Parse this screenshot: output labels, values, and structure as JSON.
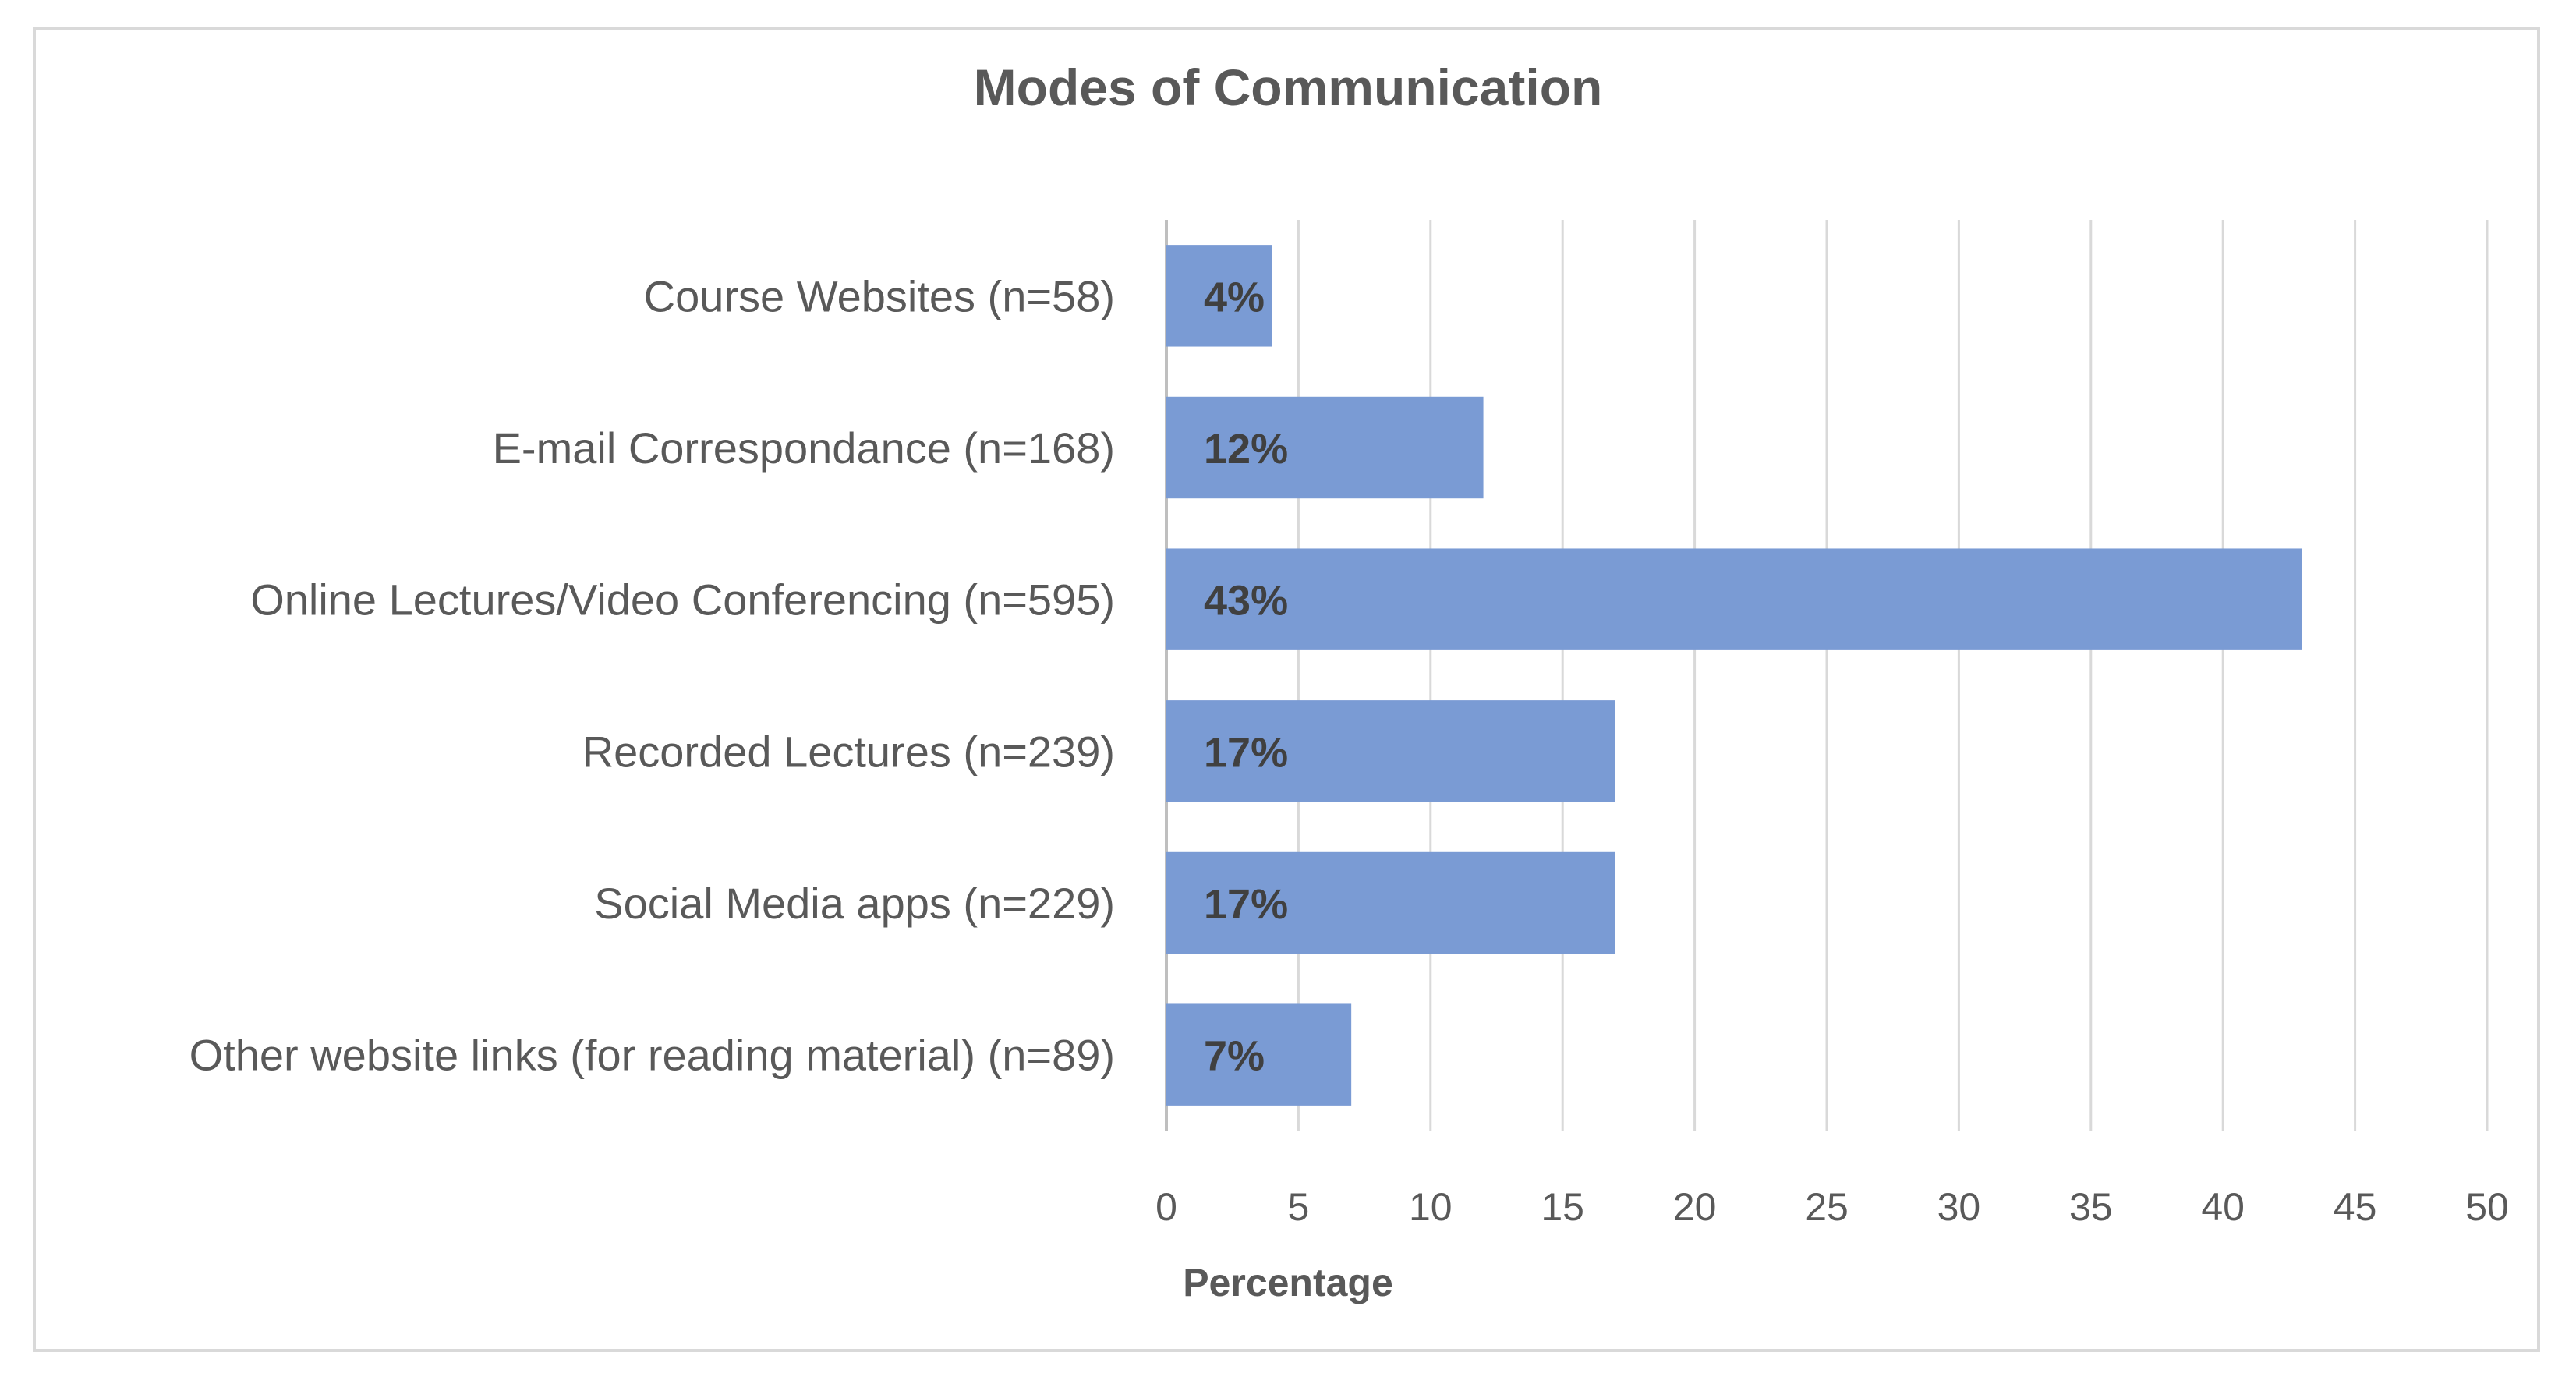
{
  "chart_data": {
    "type": "bar",
    "orientation": "horizontal",
    "title": "Modes of Communication",
    "xlabel": "Percentage",
    "ylabel": "",
    "categories": [
      "Course Websites (n=58)",
      "E-mail Correspondance (n=168)",
      "Online Lectures/Video Conferencing (n=595)",
      "Recorded Lectures (n=239)",
      "Social Media apps (n=229)",
      "Other website links (for reading material) (n=89)"
    ],
    "values": [
      4,
      12,
      43,
      17,
      17,
      7
    ],
    "data_labels": [
      "4%",
      "12%",
      "43%",
      "17%",
      "17%",
      "7%"
    ],
    "xlim": [
      0,
      50
    ],
    "xticks": [
      "0",
      "5",
      "10",
      "15",
      "20",
      "25",
      "30",
      "35",
      "40",
      "45",
      "50"
    ],
    "grid": "vertical",
    "legend": "none",
    "colors": {
      "bar": "#7a9bd4",
      "grid": "#d9d9d9",
      "text": "#595959"
    }
  }
}
